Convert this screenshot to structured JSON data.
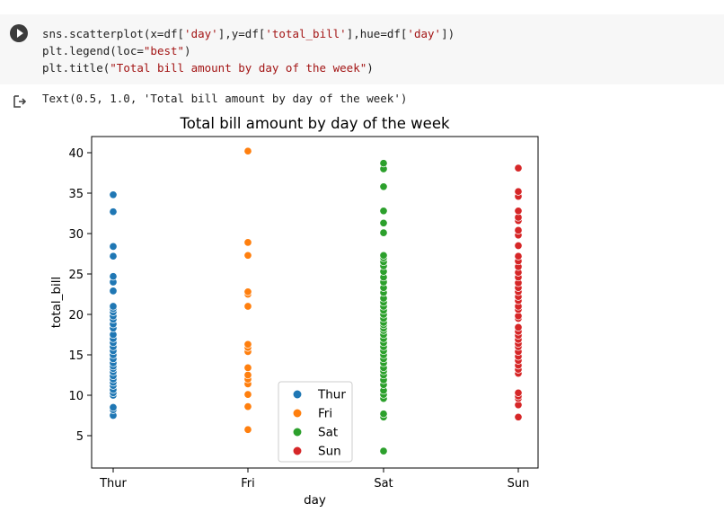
{
  "cell": {
    "code_lines": [
      [
        {
          "t": "sns.scatterplot(x=df["
        },
        {
          "t": "'day'",
          "s": 1
        },
        {
          "t": "],y=df["
        },
        {
          "t": "'total_bill'",
          "s": 1
        },
        {
          "t": "],hue=df["
        },
        {
          "t": "'day'",
          "s": 1
        },
        {
          "t": "])"
        }
      ],
      [
        {
          "t": "plt.legend(loc="
        },
        {
          "t": "\"best\"",
          "s": 1
        },
        {
          "t": ")"
        }
      ],
      [
        {
          "t": "plt.title("
        },
        {
          "t": "\"Total bill amount by day of the week\"",
          "s": 1
        },
        {
          "t": ")"
        }
      ]
    ],
    "run_icon": "play-icon"
  },
  "output": {
    "icon": "output-arrow-icon",
    "text": "Text(0.5, 1.0, 'Total bill amount by day of the week')"
  },
  "chart_data": {
    "type": "scatter",
    "title": "Total bill amount by day of the week",
    "xlabel": "day",
    "ylabel": "total_bill",
    "categories": [
      "Thur",
      "Fri",
      "Sat",
      "Sun"
    ],
    "ylim": [
      1.0,
      42.0
    ],
    "yticks": [
      5,
      10,
      15,
      20,
      25,
      30,
      35,
      40
    ],
    "grid": false,
    "legend_position": "lower-center",
    "series": [
      {
        "name": "Thur",
        "color": "#1f77b4",
        "values": [
          7.5,
          8.2,
          8.5,
          10,
          10.3,
          10.7,
          11.2,
          11.6,
          12,
          12.4,
          12.9,
          13.3,
          13.6,
          14,
          14.5,
          15.0,
          15.5,
          16.0,
          16.5,
          17.0,
          17.5,
          18.3,
          18.8,
          19.4,
          19.8,
          20.3,
          20.7,
          21.0,
          22.9,
          24.0,
          24.7,
          27.2,
          28.4,
          32.7,
          34.8
        ]
      },
      {
        "name": "Fri",
        "color": "#ff7f0e",
        "values": [
          5.75,
          8.6,
          10.1,
          11.4,
          12.0,
          12.5,
          13.4,
          15.4,
          15.9,
          16.3,
          21.0,
          22.5,
          22.8,
          27.3,
          28.9,
          40.2
        ]
      },
      {
        "name": "Sat",
        "color": "#2ca02c",
        "values": [
          3.1,
          7.3,
          7.7,
          9.6,
          10.1,
          10.6,
          11.3,
          11.9,
          12.5,
          13.0,
          13.4,
          14.0,
          14.5,
          15.0,
          15.5,
          16.0,
          16.5,
          17.0,
          17.5,
          18.0,
          18.3,
          18.7,
          19.0,
          19.5,
          20.0,
          20.5,
          21.0,
          21.5,
          22.0,
          22.7,
          23.3,
          24.0,
          24.6,
          25.3,
          26.0,
          26.5,
          27.0,
          27.3,
          30.1,
          31.3,
          32.8,
          35.8,
          38.0,
          38.7
        ]
      },
      {
        "name": "Sun",
        "color": "#d62728",
        "values": [
          7.3,
          8.8,
          9.6,
          9.9,
          10.3,
          12.7,
          13.2,
          13.7,
          14.3,
          14.8,
          15.4,
          16.0,
          16.4,
          16.9,
          17.4,
          17.9,
          18.4,
          19.5,
          19.8,
          20.6,
          21.0,
          21.7,
          22.2,
          22.8,
          23.3,
          23.9,
          24.6,
          25.2,
          25.9,
          26.6,
          27.2,
          28.5,
          29.8,
          30.4,
          31.6,
          32.0,
          32.8,
          34.6,
          35.2,
          38.1
        ]
      }
    ]
  }
}
